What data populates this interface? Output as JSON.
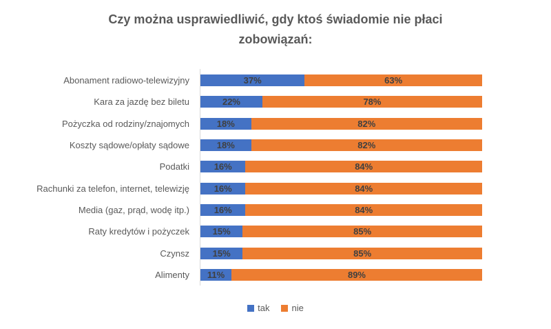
{
  "chart_data": {
    "type": "bar",
    "orientation": "horizontal-stacked",
    "title": "Czy można usprawiedliwić, gdy ktoś świadomie nie płaci zobowiązań:",
    "categories": [
      "Abonament radiowo-telewizyjny",
      "Kara za jazdę bez biletu",
      "Pożyczka od rodziny/znajomych",
      "Koszty sądowe/opłaty sądowe",
      "Podatki",
      "Rachunki za telefon, internet, telewizję",
      "Media (gaz, prąd, wodę itp.)",
      "Raty kredytów i pożyczek",
      "Czynsz",
      "Alimenty"
    ],
    "series": [
      {
        "name": "tak",
        "color": "#4472C4",
        "values": [
          37,
          22,
          18,
          18,
          16,
          16,
          16,
          15,
          15,
          11
        ]
      },
      {
        "name": "nie",
        "color": "#ED7D31",
        "values": [
          63,
          78,
          82,
          82,
          84,
          84,
          84,
          85,
          85,
          89
        ]
      }
    ],
    "xlim": [
      0,
      100
    ],
    "value_label_format": "{v}%",
    "grid": false,
    "legend_position": "bottom"
  },
  "colors": {
    "title_text": "#595959",
    "category_text": "#595959",
    "value_text": "#404040",
    "axis_line": "#d9d9d9",
    "background": "#ffffff"
  }
}
